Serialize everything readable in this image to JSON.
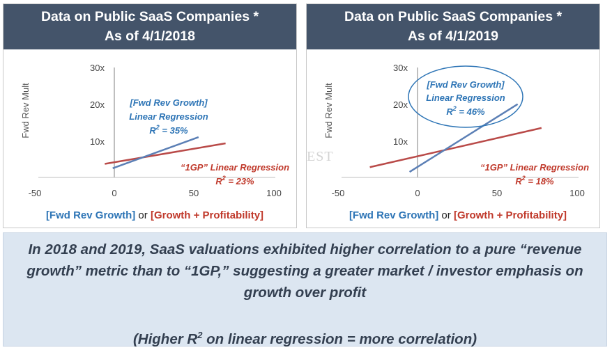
{
  "footer": {
    "line1": "In 2018 and 2019, SaaS valuations exhibited higher correlation to a pure “revenue growth” metric than to “1GP,” suggesting a greater market / investor emphasis on growth over profit",
    "line2_prefix": "(Higher R",
    "line2_sup": "2",
    "line2_suffix": " on linear regression = more correlation)"
  },
  "watermark": "NORWEST",
  "colors": {
    "header": "#44546a",
    "blue": "#2e75b6",
    "red": "#c0392b",
    "footer_bg": "#dce6f1"
  },
  "chart_data": [
    {
      "type": "line",
      "title_line1": "Data on Public SaaS Companies *",
      "title_line2": "As of 4/1/2018",
      "ylabel": "Fwd Rev Mult",
      "x_ticks": [
        "-50",
        "0",
        "50",
        "100"
      ],
      "y_ticks": [
        "10x",
        "20x",
        "30x"
      ],
      "xlim": [
        -50,
        100
      ],
      "ylim": [
        0,
        30
      ],
      "series": [
        {
          "name": "[Fwd Rev Growth]",
          "color": "#5b7fb5",
          "points": [
            [
              -1,
              2.5
            ],
            [
              53,
              11
            ]
          ]
        },
        {
          "name": "[Growth + Profitability]",
          "color": "#b94a48",
          "points": [
            [
              -6,
              3.7
            ],
            [
              70,
              9.3
            ]
          ]
        }
      ],
      "blue_annotation": [
        "[Fwd Rev Growth]",
        "Linear Regression",
        "R",
        "2",
        " = 35%"
      ],
      "red_annotation": [
        "“1GP” Linear Regression",
        "R",
        "2",
        " = 23%"
      ],
      "legend": {
        "blue": "[Fwd Rev Growth]",
        "or": " or ",
        "red": "[Growth + Profitability]"
      }
    },
    {
      "type": "line",
      "title_line1": "Data on Public SaaS Companies *",
      "title_line2": "As of 4/1/2019",
      "ylabel": "Fwd Rev Mult",
      "x_ticks": [
        "-50",
        "0",
        "50",
        "100"
      ],
      "y_ticks": [
        "10x",
        "20x",
        "30x"
      ],
      "xlim": [
        -50,
        100
      ],
      "ylim": [
        0,
        30
      ],
      "series": [
        {
          "name": "[Fwd Rev Growth]",
          "color": "#5b7fb5",
          "points": [
            [
              -5,
              1.5
            ],
            [
              63,
              20
            ]
          ]
        },
        {
          "name": "[Growth + Profitability]",
          "color": "#b94a48",
          "points": [
            [
              -30,
              2.8
            ],
            [
              78,
              13.5
            ]
          ]
        }
      ],
      "blue_annotation": [
        "[Fwd Rev Growth]",
        "Linear Regression",
        "R",
        "2",
        " = 46%"
      ],
      "red_annotation": [
        "“1GP” Linear Regression",
        "R",
        "2",
        " = 18%"
      ],
      "legend": {
        "blue": "[Fwd Rev Growth]",
        "or": " or ",
        "red": "[Growth + Profitability]"
      }
    }
  ]
}
